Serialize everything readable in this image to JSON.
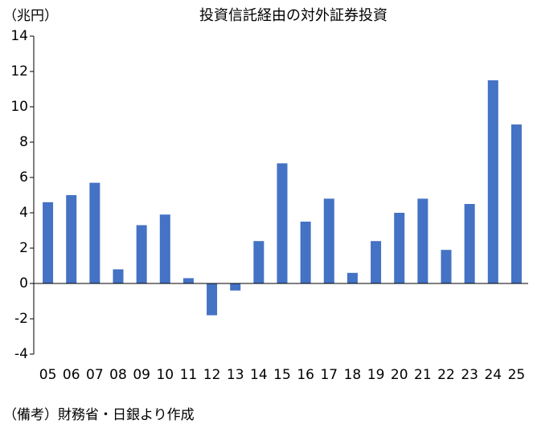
{
  "chart_data": {
    "type": "bar",
    "title": "投資信託経由の対外証券投資",
    "unit_label": "（兆円）",
    "note": "（備考）財務省・日銀より作成",
    "categories": [
      "05",
      "06",
      "07",
      "08",
      "09",
      "10",
      "11",
      "12",
      "13",
      "14",
      "15",
      "16",
      "17",
      "18",
      "19",
      "20",
      "21",
      "22",
      "23",
      "24",
      "25"
    ],
    "values": [
      4.6,
      5.0,
      5.7,
      0.8,
      3.3,
      3.9,
      0.3,
      -1.8,
      -0.4,
      2.4,
      6.8,
      3.5,
      4.8,
      0.6,
      2.4,
      4.0,
      4.8,
      1.9,
      4.5,
      11.5,
      9.0
    ],
    "color": "#4472c4",
    "ylim": [
      -4,
      14
    ],
    "yticks": [
      -4,
      -2,
      0,
      2,
      4,
      6,
      8,
      10,
      12,
      14
    ],
    "grid": false
  }
}
